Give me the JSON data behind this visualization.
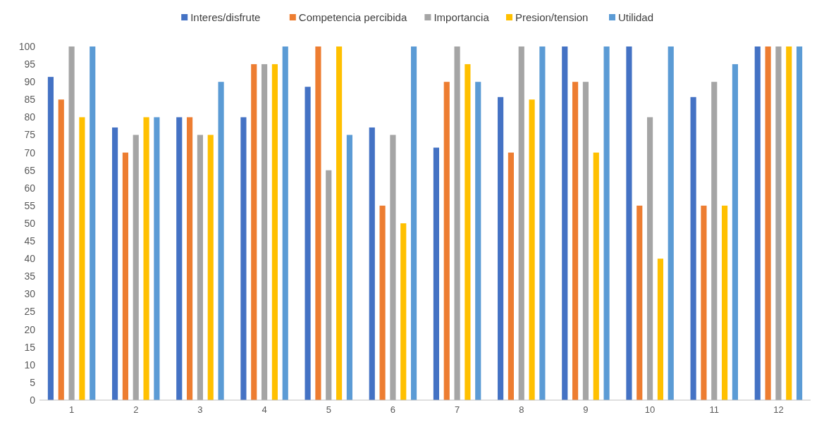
{
  "chart_data": {
    "type": "bar",
    "categories": [
      "1",
      "2",
      "3",
      "4",
      "5",
      "6",
      "7",
      "8",
      "9",
      "10",
      "11",
      "12"
    ],
    "series": [
      {
        "name": "Interes/disfrute",
        "color": "#4472c4",
        "values": [
          91.4,
          77.1,
          80,
          80,
          88.6,
          77.1,
          71.4,
          85.7,
          100,
          100,
          85.7,
          100
        ]
      },
      {
        "name": "Competencia percibida",
        "color": "#ed7d31",
        "values": [
          85,
          70,
          80,
          95,
          100,
          55,
          90,
          70,
          90,
          55,
          55,
          100
        ]
      },
      {
        "name": "Importancia",
        "color": "#a5a5a5",
        "values": [
          100,
          75,
          75,
          95,
          65,
          75,
          100,
          100,
          90,
          80,
          90,
          100
        ]
      },
      {
        "name": "Presion/tension",
        "color": "#ffc000",
        "values": [
          80,
          80,
          75,
          95,
          100,
          50,
          95,
          85,
          70,
          40,
          55,
          100
        ]
      },
      {
        "name": "Utilidad",
        "color": "#5b9bd5",
        "values": [
          100,
          80,
          90,
          100,
          75,
          100,
          90,
          100,
          100,
          100,
          95,
          100
        ]
      }
    ],
    "ylim": [
      0,
      100
    ],
    "yticks": [
      0,
      5,
      10,
      15,
      20,
      25,
      30,
      35,
      40,
      45,
      50,
      55,
      60,
      65,
      70,
      75,
      80,
      85,
      90,
      95,
      100
    ],
    "grid": false,
    "legend": "top"
  }
}
